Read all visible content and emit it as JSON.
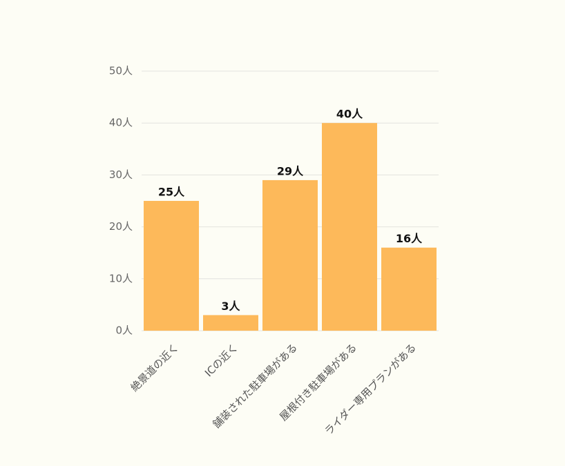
{
  "chart_data": {
    "type": "bar",
    "categories": [
      "絶景道の近く",
      "ICの近く",
      "舗装された駐車場がある",
      "屋根付き駐車場がある",
      "ライダー専用プランがある"
    ],
    "values": [
      25,
      3,
      29,
      40,
      16
    ],
    "value_labels": [
      "25人",
      "3人",
      "29人",
      "40人",
      "16人"
    ],
    "color": "#fdb95a",
    "ylim": [
      0,
      50
    ],
    "yticks": [
      {
        "value": 0,
        "label": "0人"
      },
      {
        "value": 10,
        "label": "10人"
      },
      {
        "value": 20,
        "label": "20人"
      },
      {
        "value": 30,
        "label": "30人"
      },
      {
        "value": 40,
        "label": "40人"
      },
      {
        "value": 50,
        "label": "50人"
      }
    ],
    "grid": true
  }
}
